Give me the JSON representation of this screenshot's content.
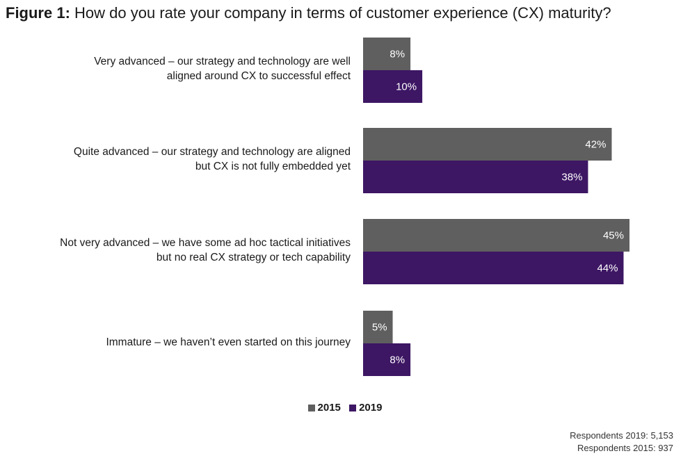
{
  "title": {
    "prefix": "Figure 1:",
    "text": "How do you rate your company in terms of customer experience (CX) maturity?"
  },
  "chart_data": {
    "type": "bar",
    "orientation": "horizontal",
    "categories": [
      [
        "Very advanced – our strategy and technology are well",
        "aligned around CX to successful effect"
      ],
      [
        "Quite advanced – our strategy and technology are aligned",
        "but CX is not fully embedded yet"
      ],
      [
        "Not very advanced – we have some ad hoc tactical initiatives",
        "but no real CX strategy or tech capability"
      ],
      [
        "Immature – we haven’t even started on this journey"
      ]
    ],
    "series": [
      {
        "name": "2015",
        "color": "#5f5f5f",
        "values": [
          8,
          42,
          45,
          5
        ],
        "labels": [
          "8%",
          "42%",
          "45%",
          "5%"
        ]
      },
      {
        "name": "2019",
        "color": "#3d1664",
        "values": [
          10,
          38,
          44,
          8
        ],
        "labels": [
          "10%",
          "38%",
          "44%",
          "8%"
        ]
      }
    ],
    "xlim": [
      0,
      45
    ],
    "grid": false,
    "legend_position": "bottom"
  },
  "footnote": {
    "line1": "Respondents 2019: 5,153",
    "line2": "Respondents 2015: 937"
  }
}
